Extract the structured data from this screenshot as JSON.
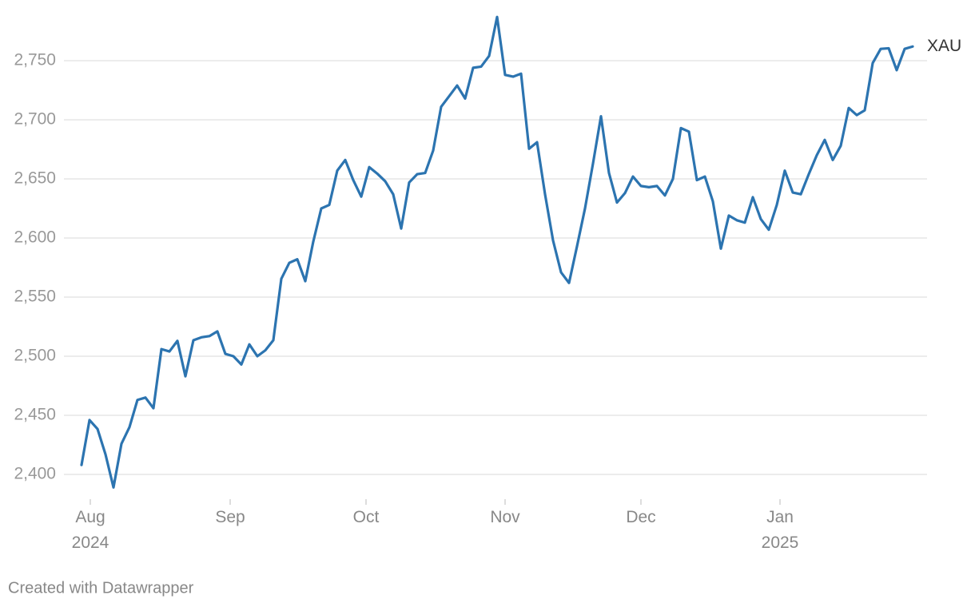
{
  "chart_data": {
    "type": "line",
    "series": [
      {
        "name": "XAU",
        "color": "#2c74b0",
        "values": [
          2408,
          2446,
          2438.5,
          2417,
          2389,
          2426,
          2440,
          2463,
          2465,
          2456,
          2506,
          2504,
          2513,
          2483,
          2513.5,
          2516,
          2517,
          2521,
          2502,
          2500,
          2493,
          2510,
          2500,
          2505,
          2513.5,
          2565.5,
          2579,
          2582,
          2563.5,
          2597,
          2625,
          2628,
          2657,
          2666,
          2649,
          2635,
          2660,
          2654.5,
          2648,
          2637,
          2608,
          2647,
          2654,
          2655,
          2674,
          2711,
          2720,
          2729,
          2718,
          2744,
          2745,
          2754,
          2787,
          2738,
          2736.5,
          2739,
          2675.5,
          2681,
          2637,
          2598,
          2571,
          2562,
          2593,
          2625,
          2663,
          2703,
          2655,
          2630,
          2638,
          2652,
          2644,
          2643,
          2644,
          2636,
          2650,
          2693,
          2690,
          2649,
          2652,
          2631,
          2591,
          2619,
          2615,
          2613,
          2634.5,
          2616,
          2607,
          2628,
          2657,
          2638.5,
          2637,
          2654,
          2670,
          2683,
          2666,
          2678,
          2710,
          2704,
          2708,
          2748,
          2760,
          2760.5,
          2742,
          2760,
          2762
        ]
      }
    ],
    "xlim": [
      0,
      104
    ],
    "xticks": [
      {
        "value": 1.1,
        "label": "Aug\n2024"
      },
      {
        "value": 18.6,
        "label": "Sep"
      },
      {
        "value": 35.6,
        "label": "Oct"
      },
      {
        "value": 53,
        "label": "Nov"
      },
      {
        "value": 70,
        "label": "Dec"
      },
      {
        "value": 87.4,
        "label": "Jan\n2025"
      }
    ],
    "ylim": [
      2380,
      2790
    ],
    "yticks": [
      {
        "value": 2400,
        "label": "2,400"
      },
      {
        "value": 2450,
        "label": "2,450"
      },
      {
        "value": 2500,
        "label": "2,500"
      },
      {
        "value": 2550,
        "label": "2,550"
      },
      {
        "value": 2600,
        "label": "2,600"
      },
      {
        "value": 2650,
        "label": "2,650"
      },
      {
        "value": 2700,
        "label": "2,700"
      },
      {
        "value": 2750,
        "label": "2,750"
      }
    ],
    "grid": true,
    "footer": "Created with Datawrapper"
  }
}
